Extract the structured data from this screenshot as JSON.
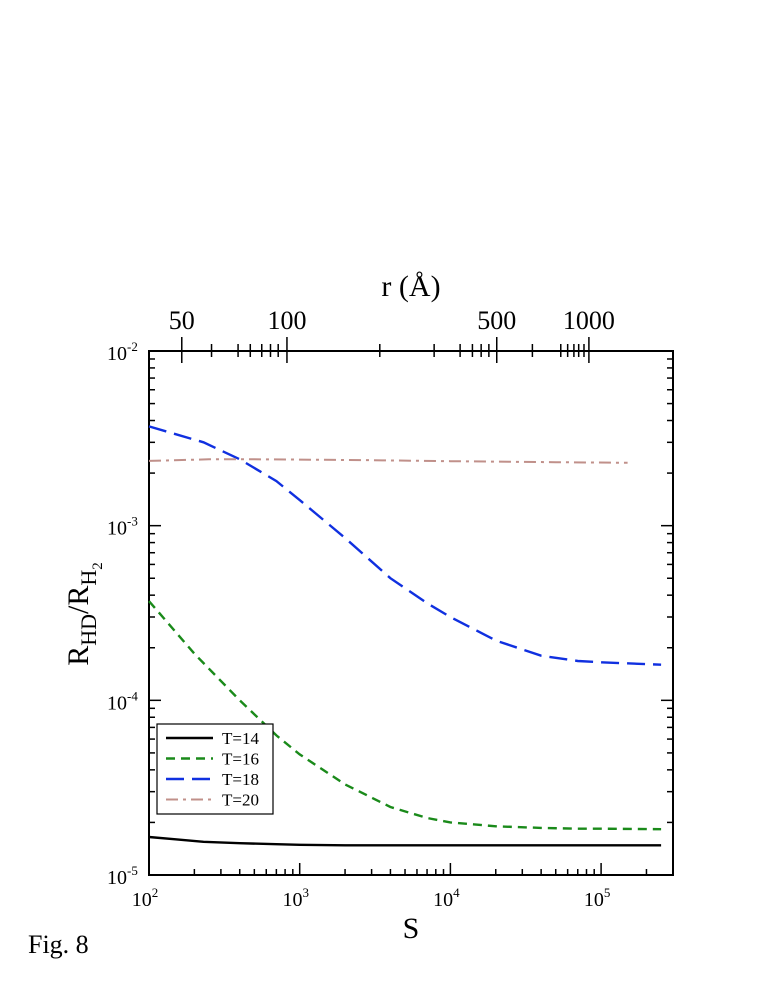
{
  "figure_label": "Fig. 8",
  "chart_data": {
    "type": "line",
    "xlabel": "S",
    "ylabel_main": "R",
    "ylabel_sub1": "HD",
    "ylabel_slash": "/R",
    "ylabel_sub2": "H",
    "ylabel_subsub": "2",
    "top_axis_label": "r (Å)",
    "x_scale": "log",
    "y_scale": "log",
    "xlim": [
      100,
      300000
    ],
    "ylim": [
      1e-05,
      0.01
    ],
    "x_ticks": [
      {
        "value": 100,
        "base": "10",
        "exp": "2"
      },
      {
        "value": 1000,
        "base": "10",
        "exp": "3"
      },
      {
        "value": 10000,
        "base": "10",
        "exp": "4"
      },
      {
        "value": 100000,
        "base": "10",
        "exp": "5"
      }
    ],
    "y_ticks": [
      {
        "value": 1e-05,
        "base": "10",
        "exp": "-5"
      },
      {
        "value": 0.0001,
        "base": "10",
        "exp": "-4"
      },
      {
        "value": 0.001,
        "base": "10",
        "exp": "-3"
      },
      {
        "value": 0.01,
        "base": "10",
        "exp": "-2"
      }
    ],
    "top_ticks": [
      {
        "S": 165,
        "label": "50"
      },
      {
        "S": 823,
        "label": "100"
      },
      {
        "S": 20300,
        "label": "500"
      },
      {
        "S": 83000,
        "label": "1000"
      }
    ],
    "top_minor_S": [
      260,
      390,
      470,
      560,
      640,
      720,
      3400,
      7800,
      11600,
      14000,
      16000,
      18000,
      35000,
      54000,
      60000,
      66000,
      71000,
      77000
    ],
    "legend_position": "lower-left",
    "grid": false,
    "series": [
      {
        "name": "T=14",
        "color": "#000000",
        "dash": "solid",
        "x": [
          100,
          150,
          230,
          400,
          700,
          1000,
          2000,
          5000,
          10000,
          30000,
          100000,
          250000
        ],
        "y": [
          1.65e-05,
          1.6e-05,
          1.55e-05,
          1.52e-05,
          1.5e-05,
          1.49e-05,
          1.48e-05,
          1.48e-05,
          1.48e-05,
          1.48e-05,
          1.48e-05,
          1.48e-05
        ]
      },
      {
        "name": "T=16",
        "color": "#1a8a1a",
        "dash": "dashed",
        "x": [
          100,
          200,
          400,
          700,
          1000,
          2000,
          4000,
          7000,
          10000,
          20000,
          40000,
          70000,
          100000,
          250000
        ],
        "y": [
          0.00037,
          0.000185,
          0.0001,
          6.3e-05,
          4.9e-05,
          3.3e-05,
          2.45e-05,
          2.12e-05,
          2e-05,
          1.9e-05,
          1.86e-05,
          1.84e-05,
          1.84e-05,
          1.83e-05
        ]
      },
      {
        "name": "T=18",
        "color": "#1030e0",
        "dash": "longdash",
        "x": [
          100,
          230,
          400,
          700,
          1000,
          2000,
          4000,
          7000,
          10000,
          20000,
          40000,
          70000,
          100000,
          250000
        ],
        "y": [
          0.0037,
          0.003,
          0.0024,
          0.0018,
          0.0014,
          0.00085,
          0.0005,
          0.00036,
          0.0003,
          0.00022,
          0.00018,
          0.000168,
          0.000165,
          0.00016
        ]
      },
      {
        "name": "T=20",
        "color": "#c0908a",
        "dash": "dashdot",
        "x": [
          100,
          250,
          500,
          1000,
          3000,
          10000,
          50000,
          150000
        ],
        "y": [
          0.00235,
          0.0024,
          0.0024,
          0.00239,
          0.00237,
          0.00234,
          0.00231,
          0.00229
        ]
      }
    ]
  }
}
